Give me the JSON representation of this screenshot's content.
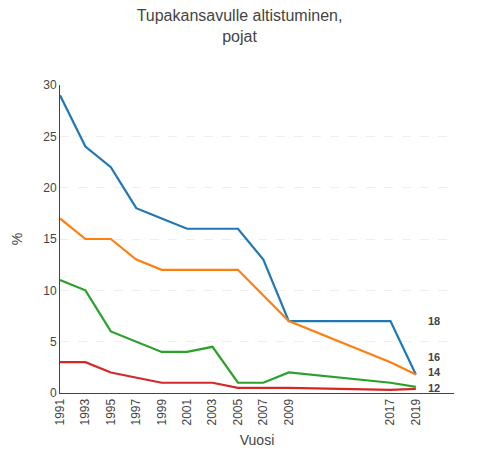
{
  "chart_data": {
    "type": "line",
    "title": "Tupakansavulle altistuminen,\npojat",
    "xlabel": "Vuosi",
    "ylabel": "%",
    "x": [
      1991,
      1993,
      1995,
      1997,
      1999,
      2001,
      2003,
      2005,
      2007,
      2009,
      2017,
      2019
    ],
    "series": [
      {
        "name": "18",
        "values": [
          29,
          24,
          22,
          18,
          17,
          16,
          16,
          16,
          13,
          7,
          7,
          1.8
        ]
      },
      {
        "name": "16",
        "values": [
          17,
          15,
          15,
          13,
          12,
          12,
          12,
          12,
          9.5,
          7,
          3,
          1.8
        ]
      },
      {
        "name": "14",
        "values": [
          11,
          10,
          6,
          5,
          4,
          4,
          4.5,
          1,
          1,
          2,
          1,
          0.6
        ]
      },
      {
        "name": "12",
        "values": [
          3,
          3,
          2,
          1.5,
          1,
          1,
          1,
          0.5,
          0.5,
          0.5,
          0.3,
          0.4
        ]
      }
    ],
    "annotations": [
      {
        "text": "18",
        "x": 2019.8,
        "y": 7.0
      },
      {
        "text": "16",
        "x": 2019.8,
        "y": 3.5
      },
      {
        "text": "14",
        "x": 2019.8,
        "y": 2.0
      },
      {
        "text": "12",
        "x": 2019.8,
        "y": 0.5
      }
    ],
    "xlim": [
      1991,
      2022
    ],
    "xticks": [
      1991,
      1993,
      1995,
      1997,
      1999,
      2001,
      2003,
      2005,
      2007,
      2009,
      2017,
      2019
    ],
    "ylim": [
      0,
      30
    ],
    "yticks": [
      0,
      5,
      10,
      15,
      20,
      25,
      30
    ],
    "grid": "y"
  }
}
